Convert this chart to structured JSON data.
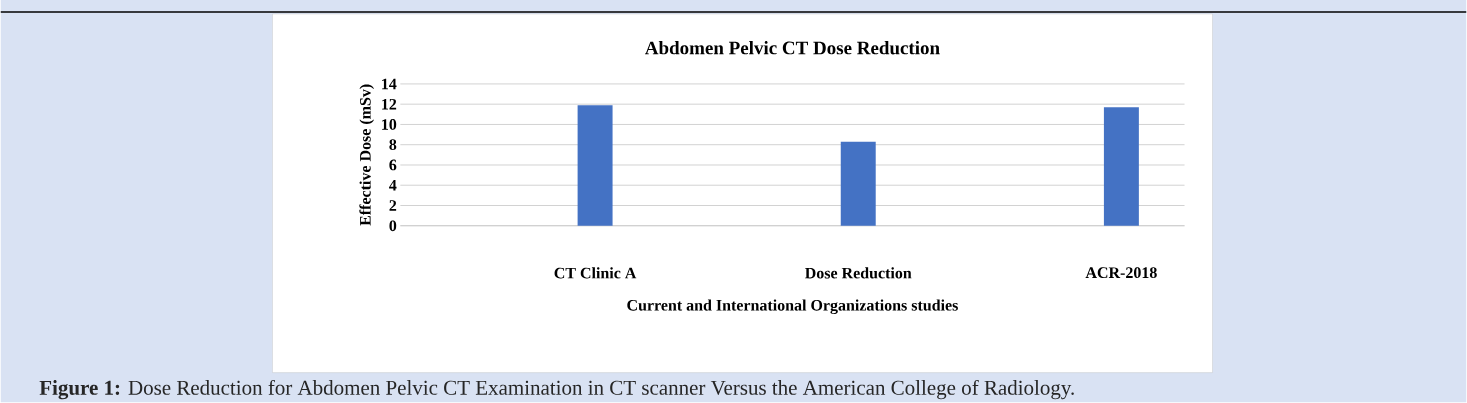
{
  "chart_data": {
    "type": "bar",
    "title": "Abdomen Pelvic  CT Dose Reduction",
    "xlabel": "Current and International Organizations studies",
    "ylabel": "Effective Dose (mSv)",
    "categories": [
      "CT Clinic A",
      "Dose Reduction",
      "ACR-2018"
    ],
    "values": [
      11.9,
      8.3,
      11.7
    ],
    "color": "#4472c4",
    "ylim": [
      0,
      14
    ],
    "yticks": [
      0,
      2,
      4,
      6,
      8,
      10,
      12,
      14
    ],
    "grid": "y",
    "annotations": [
      "**Figure 1:** Dose Reduction for Abdomen Pelvic CT Examination in CT scanner Versus the American College of Radiology."
    ]
  }
}
